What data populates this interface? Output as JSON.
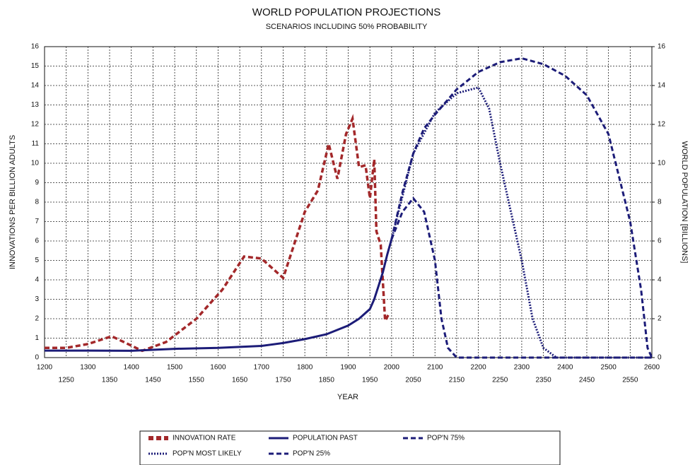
{
  "chart_data": {
    "type": "line",
    "title": "WORLD POPULATION PROJECTIONS",
    "subtitle": "SCENARIOS INCLUDING 50% PROBABILITY",
    "x_label": "YEAR",
    "y_label": "INNOVATIONS PER BILLION ADULTS",
    "y2_label": "WORLD POPULATION [BILLIONS]",
    "xlim": [
      1200,
      2600
    ],
    "xticks": [
      1200,
      1250,
      1300,
      1350,
      1400,
      1450,
      1500,
      1550,
      1600,
      1650,
      1700,
      1750,
      1800,
      1850,
      1900,
      1950,
      2000,
      2050,
      2100,
      2150,
      2200,
      2250,
      2300,
      2350,
      2400,
      2450,
      2500,
      2550,
      2600
    ],
    "ylim": [
      0,
      16
    ],
    "yticks": [
      0,
      1,
      2,
      3,
      4,
      5,
      6,
      7,
      8,
      9,
      10,
      11,
      12,
      13,
      14,
      15,
      16
    ],
    "y2lim": [
      0,
      16
    ],
    "y2ticks": [
      0,
      2,
      4,
      6,
      8,
      10,
      12,
      14,
      16
    ],
    "grid": true,
    "legend": "bottom",
    "series": [
      {
        "name": "INNOVATION RATE",
        "color": "#a3282a",
        "dash": "dashed",
        "axis": "y",
        "x": [
          1200,
          1250,
          1300,
          1355,
          1425,
          1480,
          1550,
          1610,
          1660,
          1700,
          1750,
          1800,
          1830,
          1855,
          1875,
          1895,
          1910,
          1925,
          1940,
          1950,
          1960,
          1965,
          1975,
          1985,
          1995
        ],
        "values": [
          0.5,
          0.5,
          0.7,
          1.1,
          0.35,
          0.8,
          2.0,
          3.5,
          5.2,
          5.1,
          4.1,
          7.5,
          8.6,
          11.0,
          9.2,
          11.5,
          12.3,
          9.8,
          9.9,
          8.2,
          10.2,
          6.5,
          5.8,
          1.9,
          2.3
        ]
      },
      {
        "name": "POPULATION PAST",
        "color": "#1c1c78",
        "dash": "solid",
        "axis": "y2",
        "x": [
          1200,
          1300,
          1400,
          1500,
          1600,
          1700,
          1750,
          1800,
          1850,
          1900,
          1925,
          1950,
          1960,
          1970,
          1980,
          1990,
          2000
        ],
        "values": [
          0.36,
          0.36,
          0.35,
          0.45,
          0.5,
          0.6,
          0.75,
          0.95,
          1.2,
          1.65,
          2.0,
          2.5,
          3.0,
          3.7,
          4.4,
          5.3,
          6.1
        ]
      },
      {
        "name": "POP'N 75%",
        "color": "#1c1c78",
        "dash": "dashed",
        "axis": "y2",
        "x": [
          2000,
          2025,
          2050,
          2075,
          2100,
          2150,
          2200,
          2250,
          2300,
          2350,
          2400,
          2450,
          2500,
          2550,
          2575,
          2590,
          2600
        ],
        "values": [
          6.1,
          8.5,
          10.5,
          11.8,
          12.5,
          13.8,
          14.7,
          15.2,
          15.4,
          15.1,
          14.5,
          13.5,
          11.5,
          7.0,
          3.5,
          0.5,
          0
        ]
      },
      {
        "name": "POP'N MOST LIKELY",
        "color": "#1c1c78",
        "dash": "dotted",
        "axis": "y2",
        "x": [
          2000,
          2050,
          2100,
          2150,
          2200,
          2225,
          2250,
          2300,
          2325,
          2350,
          2380,
          2600
        ],
        "values": [
          6.1,
          10.5,
          12.6,
          13.6,
          13.9,
          12.8,
          10.0,
          5.0,
          2.0,
          0.5,
          0,
          0
        ]
      },
      {
        "name": "POP'N 25%",
        "color": "#1c1c78",
        "dash": "dashed",
        "axis": "y2",
        "x": [
          2000,
          2025,
          2050,
          2075,
          2100,
          2115,
          2130,
          2150,
          2600
        ],
        "values": [
          6.1,
          7.5,
          8.2,
          7.5,
          5.0,
          2.0,
          0.5,
          0,
          0
        ]
      }
    ]
  }
}
